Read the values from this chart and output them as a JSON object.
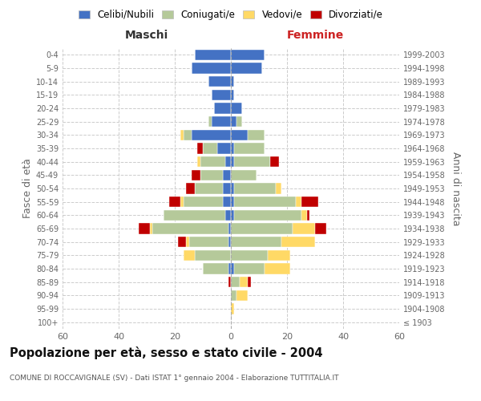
{
  "age_groups": [
    "100+",
    "95-99",
    "90-94",
    "85-89",
    "80-84",
    "75-79",
    "70-74",
    "65-69",
    "60-64",
    "55-59",
    "50-54",
    "45-49",
    "40-44",
    "35-39",
    "30-34",
    "25-29",
    "20-24",
    "15-19",
    "10-14",
    "5-9",
    "0-4"
  ],
  "birth_years": [
    "≤ 1903",
    "1904-1908",
    "1909-1913",
    "1914-1918",
    "1919-1923",
    "1924-1928",
    "1929-1933",
    "1934-1938",
    "1939-1943",
    "1944-1948",
    "1949-1953",
    "1954-1958",
    "1959-1963",
    "1964-1968",
    "1969-1973",
    "1974-1978",
    "1979-1983",
    "1984-1988",
    "1989-1993",
    "1994-1998",
    "1999-2003"
  ],
  "maschi": {
    "celibi": [
      0,
      0,
      0,
      0,
      1,
      0,
      1,
      1,
      2,
      3,
      3,
      3,
      2,
      5,
      14,
      7,
      6,
      7,
      8,
      14,
      13
    ],
    "coniugati": [
      0,
      0,
      0,
      0,
      9,
      13,
      14,
      27,
      22,
      14,
      10,
      8,
      9,
      5,
      3,
      1,
      0,
      0,
      0,
      0,
      0
    ],
    "vedovi": [
      0,
      0,
      0,
      0,
      0,
      4,
      1,
      1,
      0,
      1,
      0,
      0,
      1,
      0,
      1,
      0,
      0,
      0,
      0,
      0,
      0
    ],
    "divorziati": [
      0,
      0,
      0,
      1,
      0,
      0,
      3,
      4,
      0,
      4,
      3,
      3,
      0,
      2,
      0,
      0,
      0,
      0,
      0,
      0,
      0
    ]
  },
  "femmine": {
    "nubili": [
      0,
      0,
      0,
      0,
      1,
      0,
      0,
      0,
      1,
      1,
      1,
      0,
      1,
      1,
      6,
      2,
      4,
      1,
      1,
      11,
      12
    ],
    "coniugate": [
      0,
      0,
      2,
      3,
      11,
      13,
      18,
      22,
      24,
      22,
      15,
      9,
      13,
      11,
      6,
      2,
      0,
      0,
      0,
      0,
      0
    ],
    "vedove": [
      0,
      1,
      4,
      3,
      9,
      8,
      12,
      8,
      2,
      2,
      2,
      0,
      0,
      0,
      0,
      0,
      0,
      0,
      0,
      0,
      0
    ],
    "divorziate": [
      0,
      0,
      0,
      1,
      0,
      0,
      0,
      4,
      1,
      6,
      0,
      0,
      3,
      0,
      0,
      0,
      0,
      0,
      0,
      0,
      0
    ]
  },
  "colors": {
    "celibi": "#4472c4",
    "coniugati": "#b5c99a",
    "vedovi": "#ffd966",
    "divorziati": "#c00000"
  },
  "xlim": 60,
  "title": "Popolazione per età, sesso e stato civile - 2004",
  "subtitle": "COMUNE DI ROCCAVIGNALE (SV) - Dati ISTAT 1° gennaio 2004 - Elaborazione TUTTITALIA.IT",
  "ylabel_left": "Fasce di età",
  "ylabel_right": "Anni di nascita",
  "xlabel_left": "Maschi",
  "xlabel_right": "Femmine",
  "femmine_label_color": "#cc2222",
  "legend_labels": [
    "Celibi/Nubili",
    "Coniugati/e",
    "Vedovi/e",
    "Divorziati/e"
  ],
  "background_color": "#ffffff",
  "grid_color": "#cccccc",
  "tick_color": "#666666"
}
